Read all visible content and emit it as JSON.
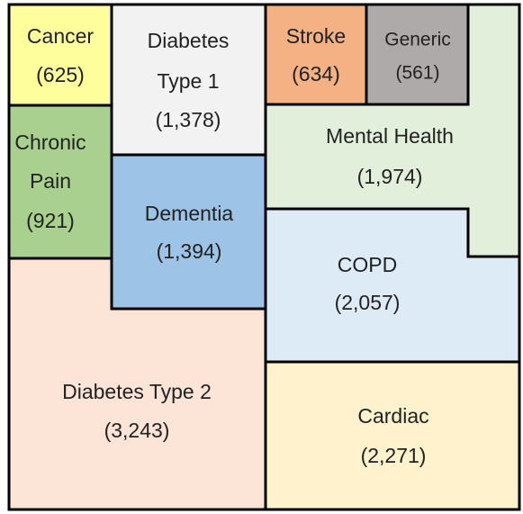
{
  "regions": [
    {
      "lines": [
        "Cancer"
      ],
      "count": "(625)"
    },
    {
      "lines": [
        "Diabetes",
        "Type 1"
      ],
      "count": "(1,378)"
    },
    {
      "lines": [
        "Stroke"
      ],
      "count": "(634)"
    },
    {
      "lines": [
        "Generic"
      ],
      "count": "(561)"
    },
    {
      "lines": [
        "Mental Health"
      ],
      "count": "(1,974)"
    },
    {
      "lines": [
        "Chronic",
        "Pain"
      ],
      "count": "(921)"
    },
    {
      "lines": [
        "Dementia"
      ],
      "count": "(1,394)"
    },
    {
      "lines": [
        "COPD"
      ],
      "count": "(2,057)"
    },
    {
      "lines": [
        "Diabetes Type 2"
      ],
      "count": "(3,243)"
    },
    {
      "lines": [
        "Cardiac"
      ],
      "count": "(2,271)"
    }
  ]
}
